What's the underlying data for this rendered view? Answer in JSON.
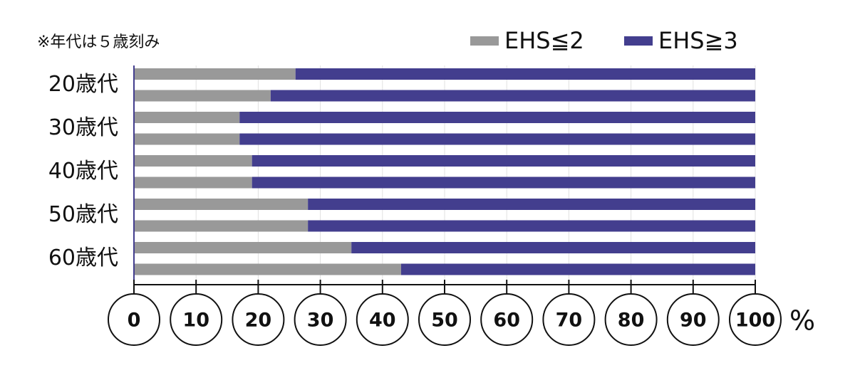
{
  "chart_data": {
    "type": "bar",
    "orientation": "horizontal",
    "stacked": true,
    "note": "※年代は５歳刻み",
    "x_label": "%",
    "categories": [
      "20歳代",
      null,
      "30歳代",
      null,
      "40歳代",
      null,
      "50歳代",
      null,
      "60歳代",
      null
    ],
    "series": [
      {
        "name": "EHS≦2",
        "color": "#999999",
        "values": [
          26,
          22,
          17,
          17,
          19,
          19,
          28,
          28,
          35,
          43
        ]
      },
      {
        "name": "EHS≧3",
        "color": "#433e8e",
        "values": [
          74,
          78,
          83,
          83,
          81,
          81,
          72,
          72,
          65,
          57
        ]
      }
    ],
    "xlim": [
      0,
      100
    ],
    "xticks": [
      0,
      10,
      20,
      30,
      40,
      50,
      60,
      70,
      80,
      90,
      100
    ],
    "grid": true,
    "legend": "top-right"
  }
}
